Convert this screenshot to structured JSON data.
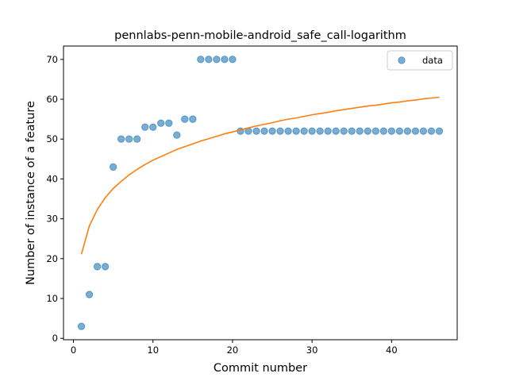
{
  "chart_data": {
    "type": "scatter",
    "title": "pennlabs-penn-mobile-android_safe_call-logarithm",
    "xlabel": "Commit number",
    "ylabel": "Number of instance of a feature",
    "xlim": [
      -1.25,
      48.25
    ],
    "ylim": [
      -0.35,
      73.35
    ],
    "xticks": [
      0,
      10,
      20,
      30,
      40
    ],
    "yticks": [
      0,
      10,
      20,
      30,
      40,
      50,
      60,
      70
    ],
    "grid": false,
    "legend_position": "top-right",
    "series": [
      {
        "name": "data",
        "kind": "scatter",
        "color": "#1f77b4",
        "x": [
          1,
          2,
          3,
          4,
          5,
          6,
          7,
          8,
          9,
          10,
          11,
          12,
          13,
          14,
          15,
          16,
          17,
          18,
          19,
          20,
          21,
          22,
          23,
          24,
          25,
          26,
          27,
          28,
          29,
          30,
          31,
          32,
          33,
          34,
          35,
          36,
          37,
          38,
          39,
          40,
          41,
          42,
          43,
          44,
          45,
          46
        ],
        "y": [
          3,
          11,
          18,
          18,
          43,
          50,
          50,
          50,
          53,
          53,
          54,
          54,
          51,
          55,
          55,
          70,
          70,
          70,
          70,
          70,
          52,
          52,
          52,
          52,
          52,
          52,
          52,
          52,
          52,
          52,
          52,
          52,
          52,
          52,
          52,
          52,
          52,
          52,
          52,
          52,
          52,
          52,
          52,
          52,
          52,
          52
        ]
      },
      {
        "kind": "line",
        "color": "#ff7f0e",
        "fit": "logarithmic",
        "x": [
          1,
          2,
          3,
          4,
          5,
          6,
          7,
          8,
          9,
          10,
          11,
          12,
          13,
          14,
          15,
          16,
          17,
          18,
          19,
          20,
          21,
          22,
          23,
          24,
          25,
          26,
          27,
          28,
          29,
          30,
          31,
          32,
          33,
          34,
          35,
          36,
          37,
          38,
          39,
          40,
          41,
          42,
          43,
          44,
          45,
          46
        ],
        "y": [
          21.1,
          28.2,
          32.3,
          35.3,
          37.6,
          39.4,
          41.0,
          42.4,
          43.6,
          44.7,
          45.6,
          46.5,
          47.4,
          48.1,
          48.8,
          49.5,
          50.1,
          50.7,
          51.3,
          51.8,
          52.3,
          52.8,
          53.3,
          53.7,
          54.1,
          54.6,
          55.0,
          55.3,
          55.7,
          56.1,
          56.4,
          56.7,
          57.1,
          57.4,
          57.7,
          58.0,
          58.3,
          58.5,
          58.8,
          59.1,
          59.3,
          59.6,
          59.8,
          60.1,
          60.3,
          60.5
        ]
      }
    ]
  }
}
